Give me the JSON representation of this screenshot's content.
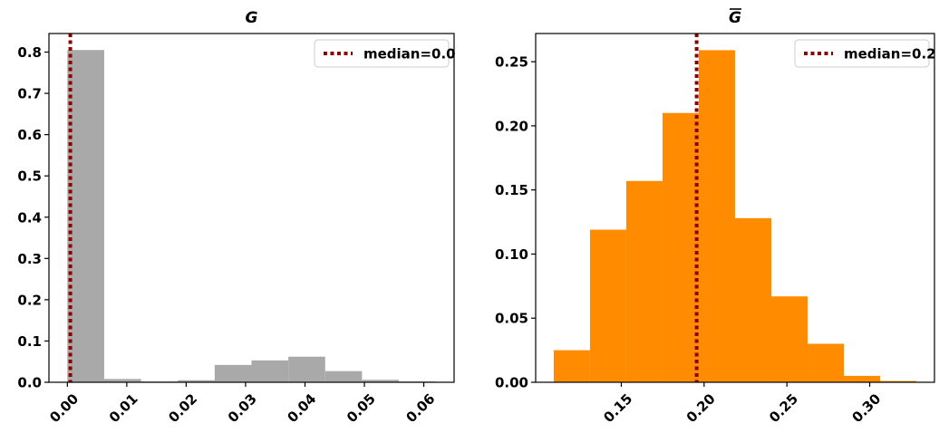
{
  "chart_data": [
    {
      "type": "bar",
      "subtype": "histogram",
      "title": "G",
      "title_overbar": false,
      "xlabel": "",
      "ylabel": "",
      "bar_color": "#A9A9A9",
      "bin_width": 0.0062,
      "bins": [
        {
          "x0": 0.0,
          "x1": 0.0062,
          "value": 0.805
        },
        {
          "x0": 0.0062,
          "x1": 0.0124,
          "value": 0.008
        },
        {
          "x0": 0.0124,
          "x1": 0.0186,
          "value": 0.002
        },
        {
          "x0": 0.0186,
          "x1": 0.0248,
          "value": 0.005
        },
        {
          "x0": 0.0248,
          "x1": 0.031,
          "value": 0.042
        },
        {
          "x0": 0.031,
          "x1": 0.0372,
          "value": 0.053
        },
        {
          "x0": 0.0372,
          "x1": 0.0434,
          "value": 0.062
        },
        {
          "x0": 0.0434,
          "x1": 0.0496,
          "value": 0.027
        },
        {
          "x0": 0.0496,
          "x1": 0.0558,
          "value": 0.006
        },
        {
          "x0": 0.0558,
          "x1": 0.062,
          "value": 0.002
        }
      ],
      "xlim": [
        -0.0031,
        0.0651
      ],
      "ylim": [
        0,
        0.845
      ],
      "xticks": [
        {
          "value": 0.0,
          "label": "0.00"
        },
        {
          "value": 0.01,
          "label": "0.01"
        },
        {
          "value": 0.02,
          "label": "0.02"
        },
        {
          "value": 0.03,
          "label": "0.03"
        },
        {
          "value": 0.04,
          "label": "0.04"
        },
        {
          "value": 0.05,
          "label": "0.05"
        },
        {
          "value": 0.06,
          "label": "0.06"
        }
      ],
      "yticks": [
        {
          "value": 0.0,
          "label": "0.0"
        },
        {
          "value": 0.1,
          "label": "0.1"
        },
        {
          "value": 0.2,
          "label": "0.2"
        },
        {
          "value": 0.3,
          "label": "0.3"
        },
        {
          "value": 0.4,
          "label": "0.4"
        },
        {
          "value": 0.5,
          "label": "0.5"
        },
        {
          "value": 0.6,
          "label": "0.6"
        },
        {
          "value": 0.7,
          "label": "0.7"
        },
        {
          "value": 0.8,
          "label": "0.8"
        }
      ],
      "median": {
        "value": 0.0005,
        "label": "median=0.0",
        "color": "#8B0000",
        "style": "dotted"
      },
      "legend": {
        "location": "upper right",
        "entries": [
          "median=0.0"
        ]
      },
      "grid": false
    },
    {
      "type": "bar",
      "subtype": "histogram",
      "title": "G",
      "title_overbar": true,
      "xlabel": "",
      "ylabel": "",
      "bar_color": "#FF8C00",
      "bin_width": 0.0219,
      "bins": [
        {
          "x0": 0.1092,
          "x1": 0.1311,
          "value": 0.025
        },
        {
          "x0": 0.1311,
          "x1": 0.153,
          "value": 0.119
        },
        {
          "x0": 0.153,
          "x1": 0.1749,
          "value": 0.157
        },
        {
          "x0": 0.1749,
          "x1": 0.1968,
          "value": 0.21
        },
        {
          "x0": 0.1968,
          "x1": 0.2187,
          "value": 0.259
        },
        {
          "x0": 0.2187,
          "x1": 0.2406,
          "value": 0.128
        },
        {
          "x0": 0.2406,
          "x1": 0.2625,
          "value": 0.067
        },
        {
          "x0": 0.2625,
          "x1": 0.2844,
          "value": 0.03
        },
        {
          "x0": 0.2844,
          "x1": 0.3063,
          "value": 0.005
        },
        {
          "x0": 0.3063,
          "x1": 0.3282,
          "value": 0.001
        }
      ],
      "xlim": [
        0.0983,
        0.3391
      ],
      "ylim": [
        0,
        0.272
      ],
      "xticks": [
        {
          "value": 0.15,
          "label": "0.15"
        },
        {
          "value": 0.2,
          "label": "0.20"
        },
        {
          "value": 0.25,
          "label": "0.25"
        },
        {
          "value": 0.3,
          "label": "0.30"
        }
      ],
      "yticks": [
        {
          "value": 0.0,
          "label": "0.00"
        },
        {
          "value": 0.05,
          "label": "0.05"
        },
        {
          "value": 0.1,
          "label": "0.10"
        },
        {
          "value": 0.15,
          "label": "0.15"
        },
        {
          "value": 0.2,
          "label": "0.20"
        },
        {
          "value": 0.25,
          "label": "0.25"
        }
      ],
      "median": {
        "value": 0.1955,
        "label": "median=0.2",
        "color": "#8B0000",
        "style": "dotted"
      },
      "legend": {
        "location": "upper right",
        "entries": [
          "median=0.2"
        ]
      },
      "grid": false
    }
  ]
}
